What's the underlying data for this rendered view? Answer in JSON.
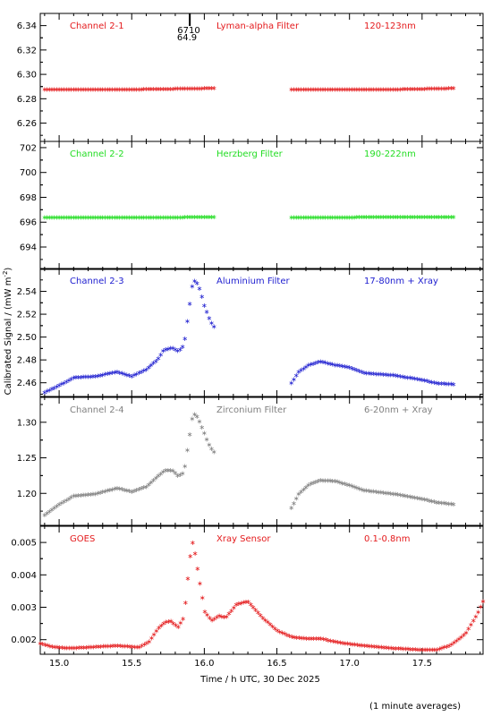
{
  "x_axis": {
    "label": "Time / h UTC, 30 Dec 2025",
    "range": [
      14.87,
      17.92
    ],
    "ticks": [
      "15.0",
      "15.5",
      "16.0",
      "16.5",
      "17.0",
      "17.5"
    ]
  },
  "y_axis_label": "Calibrated Signal / (mW m",
  "y_axis_label_sup": "-2",
  "y_axis_label_end": ")",
  "footnote": "(1 minute averages)",
  "marker": {
    "x": 15.9,
    "text_top": "6710",
    "text_bottom": "64.9"
  },
  "chart_data": [
    {
      "type": "scatter",
      "channel": "Channel 2-1",
      "filter": "Lyman-alpha Filter",
      "band": "120-123nm",
      "color": "#e41a1c",
      "ylim": [
        6.245,
        6.35
      ],
      "yticks": [
        "6.26",
        "6.28",
        "6.30",
        "6.32",
        "6.34"
      ],
      "gap": [
        16.07,
        16.6
      ],
      "series": [
        {
          "x": [
            14.9,
            15.5,
            16.07,
            16.6,
            17.3,
            17.73
          ],
          "y": [
            6.288,
            6.288,
            6.289,
            6.288,
            6.288,
            6.289
          ]
        }
      ]
    },
    {
      "type": "scatter",
      "channel": "Channel 2-2",
      "filter": "Herzberg Filter",
      "band": "190-222nm",
      "color": "#22dd22",
      "ylim": [
        692.2,
        702.5
      ],
      "yticks": [
        "694",
        "696",
        "698",
        "700",
        "702"
      ],
      "gap": [
        16.07,
        16.6
      ],
      "series": [
        {
          "x": [
            14.9,
            15.5,
            16.07,
            16.6,
            17.3,
            17.73
          ],
          "y": [
            696.4,
            696.4,
            696.45,
            696.4,
            696.45,
            696.45
          ]
        }
      ]
    },
    {
      "type": "scatter",
      "channel": "Channel 2-3",
      "filter": "Aluminium Filter",
      "band": "17-80nm + Xray",
      "color": "#2020d0",
      "ylim": [
        2.448,
        2.56
      ],
      "yticks": [
        "2.46",
        "2.48",
        "2.50",
        "2.52",
        "2.54"
      ],
      "gap": [
        16.07,
        16.6
      ],
      "series": [
        {
          "x": [
            14.9,
            15.0,
            15.1,
            15.25,
            15.4,
            15.5,
            15.6,
            15.68,
            15.72,
            15.78,
            15.82,
            15.86,
            15.89,
            15.92,
            15.94,
            15.97,
            16.0,
            16.03,
            16.06,
            16.6,
            16.65,
            16.72,
            16.8,
            16.9,
            17.0,
            17.1,
            17.3,
            17.5,
            17.6,
            17.73
          ],
          "y": [
            2.452,
            2.458,
            2.465,
            2.466,
            2.47,
            2.466,
            2.472,
            2.481,
            2.489,
            2.491,
            2.488,
            2.493,
            2.52,
            2.548,
            2.55,
            2.542,
            2.528,
            2.518,
            2.51,
            2.46,
            2.47,
            2.476,
            2.479,
            2.476,
            2.474,
            2.469,
            2.467,
            2.463,
            2.46,
            2.459
          ]
        }
      ]
    },
    {
      "type": "scatter",
      "channel": "Channel 2-4",
      "filter": "Zirconium Filter",
      "band": "6-20nm + Xray",
      "color": "#808080",
      "ylim": [
        1.155,
        1.335
      ],
      "yticks": [
        "1.20",
        "1.25",
        "1.30"
      ],
      "gap": [
        16.07,
        16.6
      ],
      "series": [
        {
          "x": [
            14.9,
            15.0,
            15.1,
            15.25,
            15.4,
            15.5,
            15.6,
            15.68,
            15.73,
            15.78,
            15.82,
            15.86,
            15.89,
            15.92,
            15.94,
            15.97,
            16.0,
            16.03,
            16.06,
            16.6,
            16.65,
            16.72,
            16.8,
            16.9,
            17.0,
            17.1,
            17.3,
            17.5,
            17.6,
            17.73
          ],
          "y": [
            1.17,
            1.185,
            1.197,
            1.2,
            1.208,
            1.203,
            1.21,
            1.225,
            1.233,
            1.233,
            1.225,
            1.23,
            1.27,
            1.31,
            1.313,
            1.3,
            1.285,
            1.27,
            1.26,
            1.18,
            1.2,
            1.213,
            1.219,
            1.218,
            1.212,
            1.205,
            1.2,
            1.193,
            1.188,
            1.185
          ]
        }
      ]
    },
    {
      "type": "scatter",
      "channel": "GOES",
      "filter": "Xray Sensor",
      "band": "0.1-0.8nm",
      "color": "#e41a1c",
      "ylim": [
        0.00155,
        0.0055
      ],
      "yticks": [
        "0.002",
        "0.003",
        "0.004",
        "0.005"
      ],
      "gap": null,
      "series": [
        {
          "x": [
            14.87,
            14.95,
            15.05,
            15.2,
            15.4,
            15.55,
            15.62,
            15.68,
            15.73,
            15.77,
            15.82,
            15.86,
            15.9,
            15.92,
            15.94,
            15.96,
            15.98,
            16.0,
            16.05,
            16.1,
            16.15,
            16.22,
            16.3,
            16.4,
            16.5,
            16.6,
            16.7,
            16.8,
            16.9,
            17.0,
            17.1,
            17.3,
            17.5,
            17.6,
            17.7,
            17.8,
            17.88,
            17.92
          ],
          "y": [
            0.0019,
            0.0018,
            0.00175,
            0.00178,
            0.00183,
            0.00178,
            0.00195,
            0.00235,
            0.00255,
            0.00258,
            0.0024,
            0.0027,
            0.0045,
            0.005,
            0.0046,
            0.004,
            0.0035,
            0.0029,
            0.0026,
            0.00275,
            0.0027,
            0.0031,
            0.0032,
            0.0027,
            0.0023,
            0.0021,
            0.00205,
            0.00205,
            0.00195,
            0.00188,
            0.00183,
            0.00175,
            0.0017,
            0.0017,
            0.00185,
            0.0022,
            0.0028,
            0.0032
          ]
        }
      ]
    }
  ]
}
